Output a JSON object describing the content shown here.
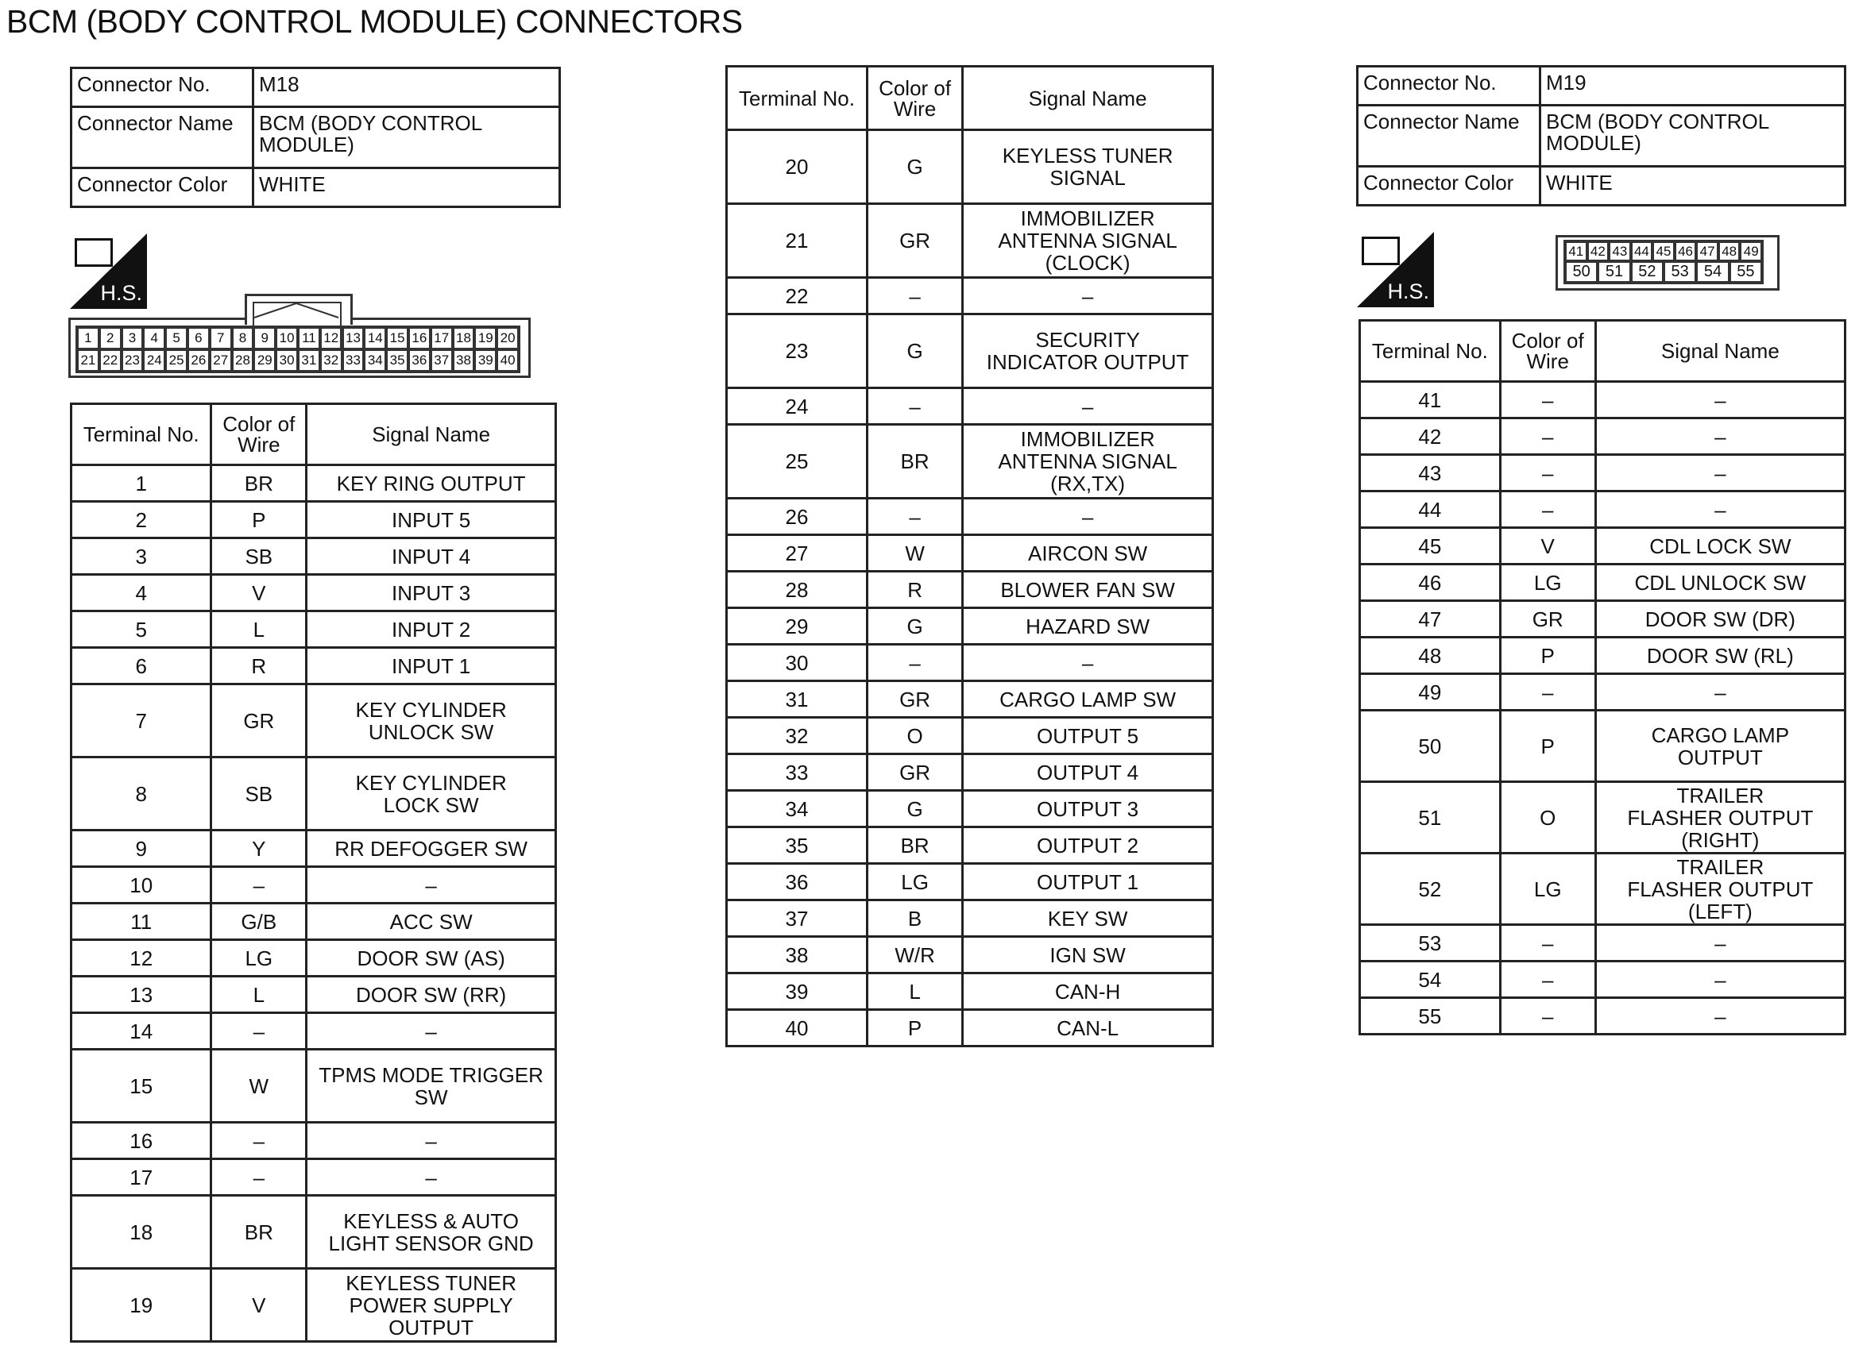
{
  "title": "BCM (BODY CONTROL MODULE) CONNECTORS",
  "labels": {
    "connector_no": "Connector No.",
    "connector_name": "Connector Name",
    "connector_color": "Connector Color",
    "terminal_no": "Terminal No.",
    "color_of_wire": "Color of Wire",
    "signal_name": "Signal Name",
    "hs": "H.S."
  },
  "m18": {
    "connector_no": "M18",
    "connector_name": "BCM (BODY CONTROL MODULE)",
    "connector_color": "WHITE",
    "rows_a": [
      [
        "1",
        "BR",
        "KEY RING OUTPUT"
      ],
      [
        "2",
        "P",
        "INPUT 5"
      ],
      [
        "3",
        "SB",
        "INPUT 4"
      ],
      [
        "4",
        "V",
        "INPUT 3"
      ],
      [
        "5",
        "L",
        "INPUT 2"
      ],
      [
        "6",
        "R",
        "INPUT 1"
      ],
      [
        "7",
        "GR",
        "KEY CYLINDER\nUNLOCK SW"
      ],
      [
        "8",
        "SB",
        "KEY CYLINDER\nLOCK SW"
      ],
      [
        "9",
        "Y",
        "RR DEFOGGER SW"
      ],
      [
        "10",
        "–",
        "–"
      ],
      [
        "11",
        "G/B",
        "ACC SW"
      ],
      [
        "12",
        "LG",
        "DOOR SW (AS)"
      ],
      [
        "13",
        "L",
        "DOOR SW (RR)"
      ],
      [
        "14",
        "–",
        "–"
      ],
      [
        "15",
        "W",
        "TPMS MODE TRIGGER\nSW"
      ],
      [
        "16",
        "–",
        "–"
      ],
      [
        "17",
        "–",
        "–"
      ],
      [
        "18",
        "BR",
        "KEYLESS & AUTO\nLIGHT SENSOR GND"
      ],
      [
        "19",
        "V",
        "KEYLESS TUNER\nPOWER SUPPLY\nOUTPUT"
      ]
    ],
    "rows_b": [
      [
        "20",
        "G",
        "KEYLESS TUNER\nSIGNAL"
      ],
      [
        "21",
        "GR",
        "IMMOBILIZER\nANTENNA SIGNAL\n(CLOCK)"
      ],
      [
        "22",
        "–",
        "–"
      ],
      [
        "23",
        "G",
        "SECURITY\nINDICATOR OUTPUT"
      ],
      [
        "24",
        "–",
        "–"
      ],
      [
        "25",
        "BR",
        "IMMOBILIZER\nANTENNA SIGNAL\n(RX,TX)"
      ],
      [
        "26",
        "–",
        "–"
      ],
      [
        "27",
        "W",
        "AIRCON SW"
      ],
      [
        "28",
        "R",
        "BLOWER FAN SW"
      ],
      [
        "29",
        "G",
        "HAZARD SW"
      ],
      [
        "30",
        "–",
        "–"
      ],
      [
        "31",
        "GR",
        "CARGO LAMP SW"
      ],
      [
        "32",
        "O",
        "OUTPUT 5"
      ],
      [
        "33",
        "GR",
        "OUTPUT 4"
      ],
      [
        "34",
        "G",
        "OUTPUT 3"
      ],
      [
        "35",
        "BR",
        "OUTPUT 2"
      ],
      [
        "36",
        "LG",
        "OUTPUT 1"
      ],
      [
        "37",
        "B",
        "KEY SW"
      ],
      [
        "38",
        "W/R",
        "IGN SW"
      ],
      [
        "39",
        "L",
        "CAN-H"
      ],
      [
        "40",
        "P",
        "CAN-L"
      ]
    ],
    "pins_top": [
      "1",
      "2",
      "3",
      "4",
      "5",
      "6",
      "7",
      "8",
      "9",
      "10",
      "11",
      "12",
      "13",
      "14",
      "15",
      "16",
      "17",
      "18",
      "19",
      "20"
    ],
    "pins_bottom": [
      "21",
      "22",
      "23",
      "24",
      "25",
      "26",
      "27",
      "28",
      "29",
      "30",
      "31",
      "32",
      "33",
      "34",
      "35",
      "36",
      "37",
      "38",
      "39",
      "40"
    ]
  },
  "m19": {
    "connector_no": "M19",
    "connector_name": "BCM (BODY CONTROL MODULE)",
    "connector_color": "WHITE",
    "rows": [
      [
        "41",
        "–",
        "–"
      ],
      [
        "42",
        "–",
        "–"
      ],
      [
        "43",
        "–",
        "–"
      ],
      [
        "44",
        "–",
        "–"
      ],
      [
        "45",
        "V",
        "CDL LOCK SW"
      ],
      [
        "46",
        "LG",
        "CDL UNLOCK SW"
      ],
      [
        "47",
        "GR",
        "DOOR SW (DR)"
      ],
      [
        "48",
        "P",
        "DOOR SW (RL)"
      ],
      [
        "49",
        "–",
        "–"
      ],
      [
        "50",
        "P",
        "CARGO LAMP\nOUTPUT"
      ],
      [
        "51",
        "O",
        "TRAILER\nFLASHER OUTPUT\n(RIGHT)"
      ],
      [
        "52",
        "LG",
        "TRAILER\nFLASHER OUTPUT\n(LEFT)"
      ],
      [
        "53",
        "–",
        "–"
      ],
      [
        "54",
        "–",
        "–"
      ],
      [
        "55",
        "–",
        "–"
      ]
    ],
    "pins_top": [
      "41",
      "42",
      "43",
      "44",
      "45",
      "46",
      "47",
      "48",
      "49"
    ],
    "pins_bottom": [
      "50",
      "51",
      "52",
      "53",
      "54",
      "55"
    ]
  }
}
